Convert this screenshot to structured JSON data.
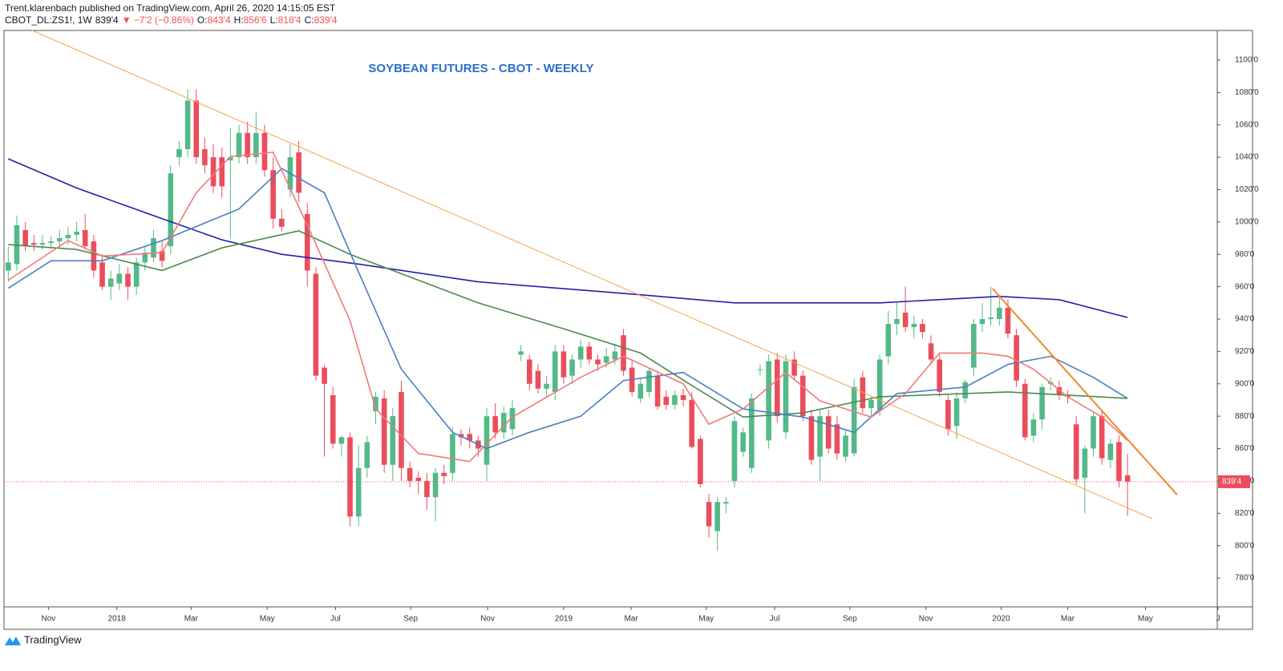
{
  "header": {
    "author_line": "Trent.klarenbach published on TradingView.com, April 26, 2020 14:15:05 EST",
    "quote": [
      {
        "text": "CBOT_DL:ZS1!, 1W",
        "color": "#131722"
      },
      {
        "text": "839'4",
        "color": "#131722"
      },
      {
        "text": "▼ −7'2 (−0.86%)",
        "color": "#ef5350"
      },
      {
        "text": "O:",
        "color": "#131722"
      },
      {
        "text": "843'4",
        "color": "#ef5350"
      },
      {
        "text": "H:",
        "color": "#131722"
      },
      {
        "text": "856'6",
        "color": "#ef5350"
      },
      {
        "text": "L:",
        "color": "#131722"
      },
      {
        "text": "818'4",
        "color": "#ef5350"
      },
      {
        "text": "C:",
        "color": "#131722"
      },
      {
        "text": "839'4",
        "color": "#ef5350"
      }
    ]
  },
  "footer": {
    "brand": "TradingView"
  },
  "chart_data": {
    "type": "candlestick",
    "title": "SOYBEAN FUTURES - CBOT - WEEKLY",
    "up_color": "#53b987",
    "down_color": "#eb4d5c",
    "xlim": [
      -0.5,
      141.5
    ],
    "ylim": [
      762.2,
      1118.3
    ],
    "xticks": [
      {
        "value": 4.7,
        "label": "Nov"
      },
      {
        "value": 12.7,
        "label": "2018"
      },
      {
        "value": 21.4,
        "label": "Mar"
      },
      {
        "value": 30.3,
        "label": "May"
      },
      {
        "value": 38.3,
        "label": "Jul"
      },
      {
        "value": 47.1,
        "label": "Sep"
      },
      {
        "value": 56.1,
        "label": "Nov"
      },
      {
        "value": 65,
        "label": "2019"
      },
      {
        "value": 72.9,
        "label": "Mar"
      },
      {
        "value": 81.7,
        "label": "May"
      },
      {
        "value": 89.7,
        "label": "Jul"
      },
      {
        "value": 98.5,
        "label": "Sep"
      },
      {
        "value": 107.4,
        "label": "Nov"
      },
      {
        "value": 116.2,
        "label": "2020"
      },
      {
        "value": 124,
        "label": "Mar"
      },
      {
        "value": 133.1,
        "label": "May"
      },
      {
        "value": 141.6,
        "label": "J"
      }
    ],
    "yticks": [
      {
        "value": 780,
        "label": "780'0"
      },
      {
        "value": 800,
        "label": "800'0"
      },
      {
        "value": 820,
        "label": "820'0"
      },
      {
        "value": 840,
        "label": "840'0"
      },
      {
        "value": 860,
        "label": "860'0"
      },
      {
        "value": 880,
        "label": "880'0"
      },
      {
        "value": 900,
        "label": "900'0"
      },
      {
        "value": 920,
        "label": "920'0"
      },
      {
        "value": 940,
        "label": "940'0"
      },
      {
        "value": 960,
        "label": "960'0"
      },
      {
        "value": 980,
        "label": "980'0"
      },
      {
        "value": 1000,
        "label": "1000'0"
      },
      {
        "value": 1020,
        "label": "1020'0"
      },
      {
        "value": 1040,
        "label": "1040'0"
      },
      {
        "value": 1060,
        "label": "1060'0"
      },
      {
        "value": 1080,
        "label": "1080'0"
      },
      {
        "value": 1100,
        "label": "1100'0"
      }
    ],
    "last_price": {
      "value": 839.5,
      "label": "839'4",
      "color": "#eb4d5c"
    },
    "ohlc": [
      [
        970,
        985,
        963,
        975
      ],
      [
        974,
        1004,
        970,
        998
      ],
      [
        995,
        1000,
        982,
        985
      ],
      [
        987,
        992,
        982,
        986
      ],
      [
        986,
        992,
        983,
        987
      ],
      [
        987,
        991,
        984,
        988
      ],
      [
        988,
        995,
        984,
        990
      ],
      [
        990,
        997,
        986,
        992
      ],
      [
        992,
        1000,
        988,
        994
      ],
      [
        995,
        1005,
        983,
        985
      ],
      [
        988,
        992,
        966,
        970
      ],
      [
        975,
        980,
        958,
        960
      ],
      [
        960,
        970,
        952,
        965
      ],
      [
        962,
        974,
        958,
        968
      ],
      [
        968,
        972,
        952,
        960
      ],
      [
        960,
        978,
        955,
        975
      ],
      [
        975,
        985,
        970,
        981
      ],
      [
        978,
        995,
        975,
        990
      ],
      [
        982,
        988,
        972,
        976
      ],
      [
        985,
        1035,
        980,
        1030
      ],
      [
        1040,
        1050,
        1035,
        1045
      ],
      [
        1045,
        1082,
        1040,
        1075
      ],
      [
        1075,
        1082,
        1036,
        1040
      ],
      [
        1045,
        1052,
        1030,
        1035
      ],
      [
        1040,
        1048,
        1018,
        1022
      ],
      [
        1040,
        1046,
        1015,
        1022
      ],
      [
        1038,
        1058,
        990,
        1040
      ],
      [
        1040,
        1060,
        1036,
        1055
      ],
      [
        1055,
        1062,
        1036,
        1040
      ],
      [
        1040,
        1068,
        1036,
        1055
      ],
      [
        1055,
        1060,
        1028,
        1032
      ],
      [
        1032,
        1040,
        996,
        1002
      ],
      [
        1002,
        1008,
        994,
        997
      ],
      [
        1020,
        1048,
        1015,
        1040
      ],
      [
        1043,
        1050,
        1012,
        1018
      ],
      [
        1005,
        1012,
        960,
        970
      ],
      [
        968,
        972,
        902,
        905
      ],
      [
        910,
        912,
        855,
        900
      ],
      [
        893,
        898,
        860,
        863
      ],
      [
        863,
        868,
        855,
        867
      ],
      [
        867,
        870,
        812,
        818
      ],
      [
        818,
        862,
        812,
        848
      ],
      [
        848,
        868,
        842,
        864
      ],
      [
        883,
        895,
        875,
        892
      ],
      [
        891,
        896,
        845,
        850
      ],
      [
        850,
        885,
        840,
        880
      ],
      [
        895,
        902,
        840,
        848
      ],
      [
        848,
        852,
        836,
        840
      ],
      [
        842,
        846,
        832,
        840
      ],
      [
        840,
        845,
        822,
        830
      ],
      [
        830,
        848,
        815,
        845
      ],
      [
        845,
        850,
        838,
        843
      ],
      [
        845,
        873,
        840,
        869
      ],
      [
        869,
        872,
        862,
        867
      ],
      [
        869,
        873,
        860,
        865
      ],
      [
        865,
        868,
        855,
        860
      ],
      [
        850,
        885,
        840,
        880
      ],
      [
        880,
        888,
        866,
        870
      ],
      [
        870,
        886,
        866,
        882
      ],
      [
        872,
        890,
        868,
        885
      ],
      [
        918,
        924,
        914,
        920
      ],
      [
        915,
        918,
        896,
        900
      ],
      [
        908,
        912,
        894,
        897
      ],
      [
        897,
        905,
        892,
        900
      ],
      [
        895,
        924,
        890,
        920
      ],
      [
        920,
        924,
        900,
        904
      ],
      [
        905,
        918,
        900,
        915
      ],
      [
        915,
        927,
        910,
        923
      ],
      [
        923,
        926,
        912,
        915
      ],
      [
        915,
        918,
        908,
        912
      ],
      [
        913,
        922,
        910,
        917
      ],
      [
        915,
        925,
        912,
        920
      ],
      [
        930,
        934,
        905,
        908
      ],
      [
        910,
        914,
        892,
        895
      ],
      [
        891,
        904,
        888,
        900
      ],
      [
        895,
        910,
        892,
        908
      ],
      [
        905,
        908,
        884,
        886
      ],
      [
        892,
        896,
        884,
        887
      ],
      [
        887,
        896,
        884,
        893
      ],
      [
        893,
        897,
        886,
        890
      ],
      [
        890,
        895,
        860,
        861
      ],
      [
        866,
        868,
        836,
        838
      ],
      [
        827,
        832,
        805,
        812
      ],
      [
        809,
        830,
        797,
        827
      ],
      [
        826,
        830,
        820,
        827
      ],
      [
        840,
        880,
        836,
        877
      ],
      [
        858,
        873,
        855,
        870
      ],
      [
        848,
        894,
        845,
        891
      ],
      [
        909,
        912,
        905,
        909
      ],
      [
        865,
        918,
        860,
        914
      ],
      [
        915,
        919,
        876,
        880
      ],
      [
        870,
        918,
        866,
        914
      ],
      [
        915,
        920,
        902,
        905
      ],
      [
        905,
        908,
        877,
        880
      ],
      [
        880,
        884,
        850,
        853
      ],
      [
        855,
        884,
        840,
        880
      ],
      [
        880,
        884,
        857,
        860
      ],
      [
        875,
        880,
        853,
        857
      ],
      [
        855,
        871,
        852,
        868
      ],
      [
        857,
        903,
        855,
        898
      ],
      [
        904,
        908,
        882,
        885
      ],
      [
        885,
        892,
        880,
        890
      ],
      [
        884,
        918,
        880,
        915
      ],
      [
        917,
        945,
        912,
        937
      ],
      [
        937,
        950,
        930,
        940
      ],
      [
        944,
        960,
        932,
        935
      ],
      [
        935,
        942,
        928,
        937
      ],
      [
        937,
        940,
        928,
        932
      ],
      [
        925,
        930,
        912,
        915
      ],
      [
        915,
        918,
        892,
        895
      ],
      [
        890,
        893,
        868,
        872
      ],
      [
        874,
        895,
        866,
        891
      ],
      [
        891,
        903,
        888,
        901
      ],
      [
        910,
        940,
        905,
        937
      ],
      [
        937,
        950,
        932,
        940
      ],
      [
        940,
        960,
        936,
        941
      ],
      [
        940,
        955,
        936,
        947
      ],
      [
        947,
        952,
        928,
        931
      ],
      [
        930,
        934,
        898,
        902
      ],
      [
        900,
        903,
        865,
        867
      ],
      [
        868,
        882,
        864,
        878
      ],
      [
        878,
        900,
        872,
        898
      ],
      [
        900,
        904,
        896,
        901
      ],
      [
        898,
        902,
        890,
        893
      ],
      [
        893,
        896,
        888,
        892
      ],
      [
        875,
        880,
        838,
        841
      ],
      [
        842,
        862,
        820,
        860
      ],
      [
        860,
        882,
        855,
        880
      ],
      [
        880,
        884,
        850,
        854
      ],
      [
        853,
        866,
        848,
        863
      ],
      [
        864,
        868,
        836,
        840
      ],
      [
        843.5,
        856.75,
        818.5,
        839.5
      ]
    ],
    "lines": [
      {
        "color": "#2a1ca8",
        "x": [
          0,
          8,
          18,
          25,
          32,
          41,
          55,
          74,
          85,
          102,
          116,
          123,
          131
        ],
        "values": [
          1039,
          1021,
          1002,
          989,
          980,
          974,
          963,
          955,
          950,
          950,
          954,
          952,
          941
        ]
      },
      {
        "color": "#4c8a4c",
        "x": [
          0,
          8,
          18,
          25,
          34,
          40,
          48,
          55,
          65,
          74,
          80,
          86,
          93,
          102,
          112,
          117,
          124,
          131
        ],
        "values": [
          986,
          983,
          970,
          984,
          994.5,
          980,
          964,
          950,
          934,
          919,
          899,
          879.5,
          882,
          892,
          894,
          895,
          893,
          891
        ]
      },
      {
        "color": "#4a7fc1",
        "x": [
          0,
          5,
          11,
          18,
          27,
          32,
          37,
          41,
          46,
          52,
          56,
          61,
          67,
          72,
          79,
          86,
          93,
          99,
          104,
          112,
          117,
          122,
          127,
          131
        ],
        "values": [
          959,
          976,
          976,
          988.5,
          1008,
          1033,
          1018,
          969,
          909,
          870,
          860,
          870,
          880,
          902,
          907,
          884.5,
          879.5,
          870,
          894,
          898,
          912,
          917,
          904,
          891
        ]
      },
      {
        "color": "#ef7a78",
        "x": [
          0,
          7,
          11,
          18,
          22,
          26,
          31,
          35,
          40,
          43,
          48,
          54,
          59,
          67,
          72,
          79,
          82,
          86,
          91,
          95,
          101,
          105,
          109,
          114,
          117,
          120,
          124,
          128,
          131
        ],
        "values": [
          964,
          988.5,
          979,
          981,
          1018,
          1040.5,
          1043,
          998,
          939,
          884.5,
          857,
          852,
          879.5,
          904,
          917,
          900,
          875,
          884.5,
          907,
          889.5,
          879.5,
          894,
          919,
          919,
          917,
          909,
          892,
          879.5,
          865
        ]
      }
    ],
    "trendlines": [
      {
        "color": "#f5a34a",
        "width": 1,
        "x": [
          2.8,
          133.9
        ],
        "values": [
          1118.3,
          816.7
        ]
      },
      {
        "color": "#ee8a2a",
        "width": 2,
        "x": [
          115.2,
          136.8
        ],
        "values": [
          958.8,
          831.5
        ]
      }
    ]
  }
}
